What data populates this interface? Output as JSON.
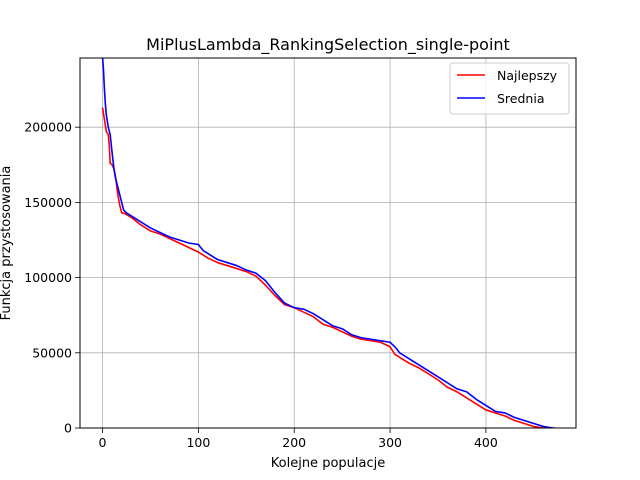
{
  "chart_data": {
    "type": "line",
    "title": "MiPlusLambda_RankingSelection_single-point",
    "xlabel": "Kolejne populacje",
    "ylabel": "Funkcja przystosowania",
    "xlim": [
      -23.5,
      494
    ],
    "ylim": [
      0,
      246000
    ],
    "grid": true,
    "legend_position": "top-right",
    "xticks": [
      0,
      100,
      200,
      300,
      400
    ],
    "xtick_labels": [
      "0",
      "100",
      "200",
      "300",
      "400"
    ],
    "yticks": [
      0,
      50000,
      100000,
      150000,
      200000
    ],
    "ytick_labels": [
      "0",
      "50000",
      "100000",
      "150000",
      "200000"
    ],
    "series": [
      {
        "name": "Najlepszy",
        "color": "#ff0000",
        "x": [
          0,
          2,
          4,
          6,
          7,
          8,
          10,
          12,
          14,
          16,
          18,
          20,
          22,
          30,
          40,
          50,
          60,
          70,
          80,
          90,
          100,
          105,
          110,
          120,
          130,
          140,
          150,
          160,
          170,
          180,
          190,
          200,
          210,
          220,
          230,
          240,
          250,
          260,
          270,
          280,
          290,
          300,
          305,
          310,
          320,
          330,
          340,
          350,
          360,
          370,
          380,
          390,
          400,
          410,
          420,
          430,
          440,
          450,
          460,
          470
        ],
        "y": [
          213000,
          205000,
          197000,
          195000,
          188000,
          176000,
          175000,
          172000,
          165000,
          155000,
          148000,
          143000,
          143000,
          140000,
          135000,
          131000,
          129000,
          126000,
          123000,
          120000,
          117000,
          115000,
          113000,
          110000,
          108000,
          106000,
          104000,
          101000,
          95000,
          88000,
          82000,
          80000,
          77000,
          74000,
          69000,
          67000,
          64000,
          61000,
          59000,
          58000,
          57000,
          54000,
          49000,
          47000,
          43000,
          40000,
          36000,
          32000,
          27000,
          24000,
          20000,
          16000,
          12000,
          10000,
          8000,
          5000,
          3000,
          1000,
          0,
          0
        ]
      },
      {
        "name": "Srednia",
        "color": "#0000ff",
        "x": [
          0,
          1,
          2,
          3,
          4,
          6,
          8,
          10,
          12,
          14,
          16,
          18,
          20,
          22,
          25,
          30,
          40,
          50,
          60,
          70,
          80,
          90,
          100,
          105,
          110,
          120,
          130,
          140,
          150,
          160,
          170,
          180,
          190,
          200,
          210,
          220,
          230,
          240,
          250,
          260,
          270,
          280,
          290,
          300,
          305,
          310,
          320,
          330,
          340,
          350,
          360,
          370,
          380,
          390,
          400,
          410,
          420,
          430,
          440,
          450,
          460,
          470,
          472
        ],
        "y": [
          247000,
          238000,
          225000,
          215000,
          208000,
          200000,
          195000,
          183000,
          172000,
          165000,
          160000,
          155000,
          150000,
          145000,
          143000,
          141000,
          137000,
          133000,
          130000,
          127000,
          125000,
          123000,
          122000,
          118000,
          116000,
          112000,
          110000,
          108000,
          105000,
          103000,
          98000,
          90000,
          83000,
          80000,
          79000,
          76000,
          72000,
          68000,
          66000,
          62000,
          60000,
          59000,
          58000,
          57000,
          54000,
          50000,
          46000,
          42000,
          38000,
          34000,
          30000,
          26000,
          24000,
          19000,
          15000,
          11000,
          10000,
          7000,
          5000,
          3000,
          1000,
          0,
          0
        ]
      }
    ]
  }
}
